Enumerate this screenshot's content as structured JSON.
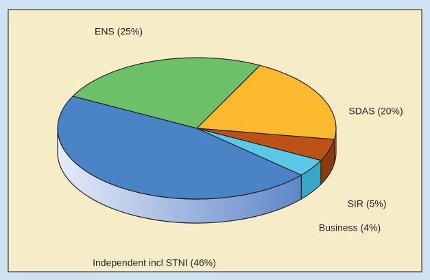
{
  "chart_data": {
    "type": "pie",
    "categories": [
      "ENS (25%)",
      "SDAS (20%)",
      "SIR (5%)",
      "Business (4%)",
      "Independent incl STNI (46%)"
    ],
    "values": [
      25,
      20,
      5,
      4,
      46
    ],
    "colors": [
      "#6cc067",
      "#fbb92e",
      "#bd5216",
      "#5bc8e8",
      "#4a84c6"
    ]
  }
}
